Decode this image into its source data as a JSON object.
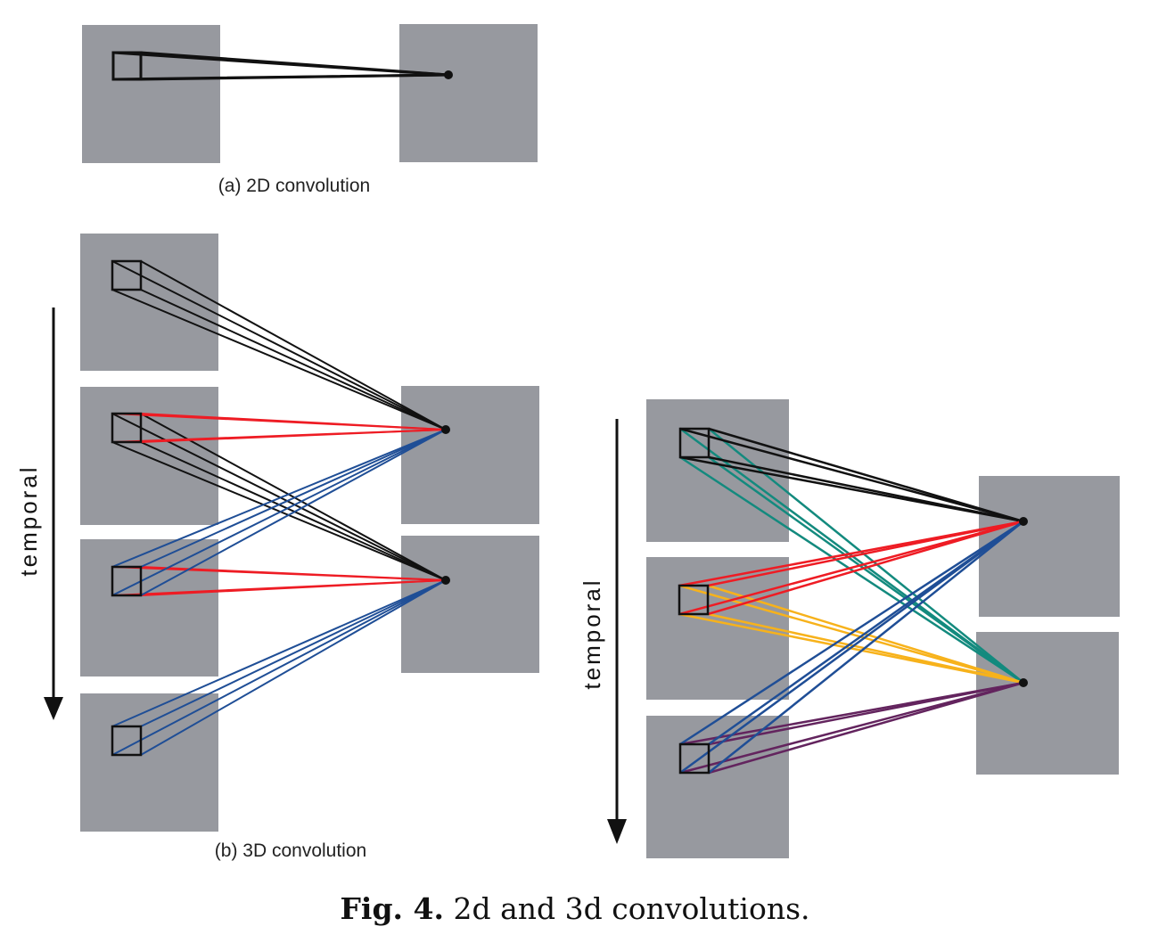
{
  "panels": {
    "a_label": "(a) 2D convolution",
    "b_label": "(b) 3D convolution"
  },
  "axis": {
    "left_word": "temporal",
    "right_word": "temporal"
  },
  "caption": {
    "fig_number": "Fig. 4.",
    "text": "2d and 3d convolutions."
  },
  "colors": {
    "frame": "#97999f",
    "black": "#111111",
    "red": "#ee1c24",
    "blue": "#1f4e96",
    "teal": "#138a7e",
    "orange": "#f7b21b",
    "purple": "#63245e"
  }
}
